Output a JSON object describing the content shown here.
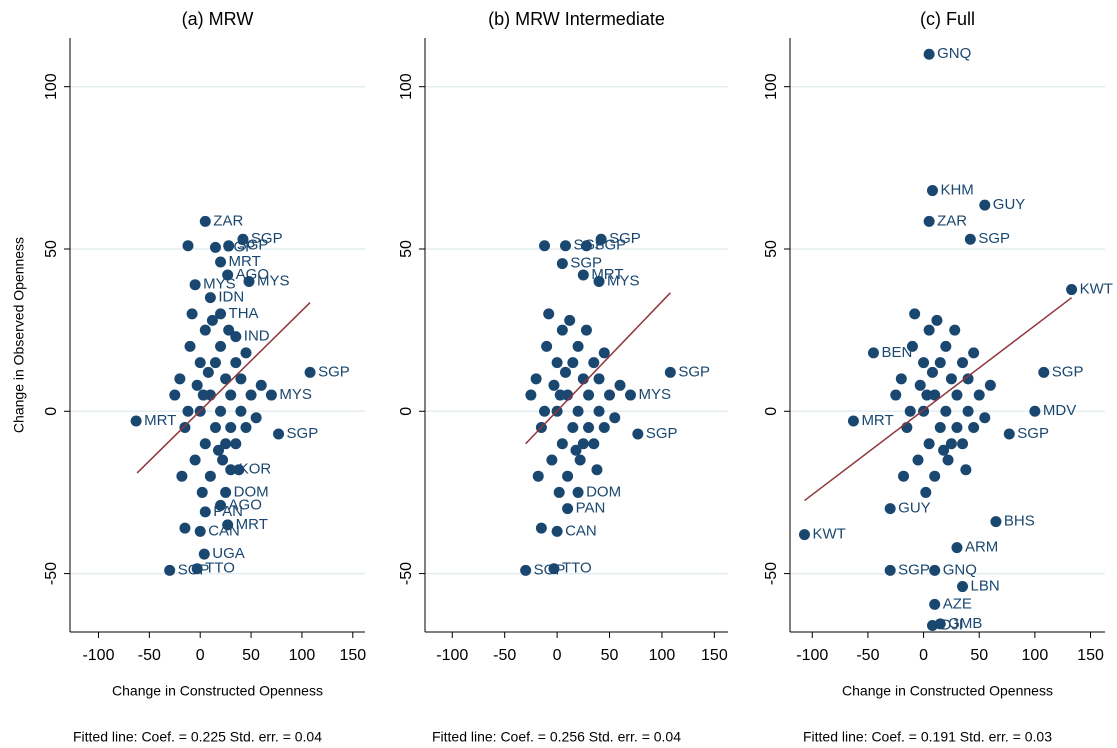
{
  "chart_data": [
    {
      "type": "scatter",
      "title": "(a) MRW",
      "xlabel": "Change in Constructed Openness",
      "ylabel": "Change in Observed Openness",
      "note": "Fitted line: Coef. = 0.225 Std. err. = 0.04",
      "x": [
        5,
        42,
        -12,
        28,
        15,
        20,
        27,
        48,
        -5,
        10,
        20,
        35,
        108,
        70,
        -63,
        77,
        30,
        25,
        20,
        5,
        -15,
        27,
        0,
        4,
        -30,
        -3,
        -20,
        -15,
        -10,
        -5,
        0,
        0,
        5,
        5,
        10,
        10,
        15,
        15,
        20,
        20,
        25,
        25,
        30,
        30,
        35,
        35,
        40,
        40,
        45,
        50,
        55,
        -25,
        -18,
        -8,
        2,
        12,
        22,
        45,
        60,
        -12,
        8,
        18,
        28,
        38,
        3,
        -3
      ],
      "y": [
        58.5,
        53,
        51,
        51,
        50.5,
        46,
        42,
        40,
        39,
        35,
        30,
        23,
        12,
        5,
        -3,
        -7,
        -18,
        -25,
        -29,
        -31,
        -36,
        -35,
        -37,
        -44,
        -49,
        -48.5,
        10,
        -5,
        20,
        -15,
        0,
        15,
        -10,
        25,
        5,
        -20,
        15,
        -5,
        0,
        20,
        -10,
        10,
        5,
        -5,
        15,
        -10,
        0,
        10,
        -5,
        5,
        -2,
        5,
        -20,
        30,
        -25,
        28,
        -15,
        18,
        8,
        0,
        12,
        -12,
        25,
        -18,
        5,
        8
      ],
      "labels": [
        "ZAR",
        "SGP",
        null,
        "SGP",
        "SGP",
        "MRT",
        "AGO",
        "MYS",
        "MYS",
        "IDN",
        "THA",
        "IND",
        "SGP",
        "MYS",
        "MRT",
        "SGP",
        "KOR",
        "DOM",
        "AGO",
        "PAN",
        null,
        "MRT",
        "CAN",
        "UGA",
        "SGP",
        "TTO",
        null,
        null,
        null,
        null,
        null,
        null,
        null,
        null,
        null,
        null,
        null,
        null,
        null,
        null,
        null,
        null,
        null,
        null,
        null,
        null,
        null,
        null,
        null,
        null,
        null,
        null,
        null,
        null,
        null,
        null,
        null,
        null,
        null,
        null,
        null,
        null,
        null,
        null,
        null,
        null
      ],
      "color": "#1a476f",
      "fit": {
        "x": [
          -62,
          108
        ],
        "y": [
          -19,
          33.5
        ],
        "color": "#90353b"
      },
      "xlim": [
        -128,
        162
      ],
      "ylim": [
        -68,
        115
      ],
      "xticks": [
        -100,
        -50,
        0,
        50,
        100,
        150
      ],
      "yticks": [
        -50,
        0,
        50,
        100
      ],
      "grid": true
    },
    {
      "type": "scatter",
      "title": "(b) MRW Intermediate",
      "note": "Fitted line: Coef. = 0.256 Std. err. = 0.04",
      "x": [
        42,
        -12,
        8,
        28,
        5,
        25,
        40,
        108,
        70,
        77,
        20,
        10,
        -15,
        0,
        -30,
        -3,
        -20,
        -15,
        -10,
        -5,
        0,
        0,
        5,
        5,
        10,
        10,
        15,
        15,
        20,
        20,
        25,
        25,
        30,
        30,
        35,
        35,
        40,
        40,
        45,
        50,
        55,
        -25,
        -18,
        -8,
        2,
        12,
        22,
        45,
        60,
        -12,
        8,
        18,
        28,
        38,
        3,
        -3
      ],
      "y": [
        53,
        51,
        51,
        51,
        45.5,
        42,
        40,
        12,
        5,
        -7,
        -25,
        -30,
        -36,
        -37,
        -49,
        -48.5,
        10,
        -5,
        20,
        -15,
        0,
        15,
        -10,
        25,
        5,
        -20,
        15,
        -5,
        0,
        20,
        -10,
        10,
        5,
        -5,
        15,
        -10,
        0,
        10,
        -5,
        5,
        -2,
        5,
        -20,
        30,
        -25,
        28,
        -15,
        18,
        8,
        0,
        12,
        -12,
        25,
        -18,
        5,
        8
      ],
      "labels": [
        "SGP",
        null,
        "SGP",
        "SGP",
        "SGP",
        "MRT",
        "MYS",
        "SGP",
        "MYS",
        "SGP",
        "DOM",
        "PAN",
        null,
        "CAN",
        "SGP",
        "TTO",
        null,
        null,
        null,
        null,
        null,
        null,
        null,
        null,
        null,
        null,
        null,
        null,
        null,
        null,
        null,
        null,
        null,
        null,
        null,
        null,
        null,
        null,
        null,
        null,
        null,
        null,
        null,
        null,
        null,
        null,
        null,
        null,
        null,
        null,
        null,
        null,
        null,
        null,
        null,
        null
      ],
      "color": "#1a476f",
      "fit": {
        "x": [
          -30,
          108
        ],
        "y": [
          -10,
          36.5
        ],
        "color": "#90353b"
      },
      "xlim": [
        -126,
        163
      ],
      "ylim": [
        -68,
        115
      ],
      "xticks": [
        -100,
        -50,
        0,
        50,
        100,
        150
      ],
      "yticks": [
        -50,
        0,
        50,
        100
      ],
      "grid": true
    },
    {
      "type": "scatter",
      "title": "(c) Full",
      "xlabel": "Change in Constructed Openness",
      "note": "Fitted line: Coef. = 0.191 Std. err. = 0.03",
      "x": [
        5,
        8,
        55,
        5,
        42,
        133,
        -45,
        108,
        -63,
        77,
        -107,
        65,
        -30,
        30,
        -30,
        10,
        35,
        10,
        15,
        8,
        100,
        -20,
        -15,
        -10,
        -5,
        0,
        0,
        5,
        5,
        10,
        10,
        15,
        15,
        20,
        20,
        25,
        25,
        30,
        30,
        35,
        35,
        40,
        40,
        45,
        50,
        55,
        -25,
        -18,
        -8,
        2,
        12,
        22,
        45,
        60,
        -12,
        8,
        18,
        28,
        38,
        3,
        -3
      ],
      "y": [
        110,
        68,
        63.5,
        58.5,
        53,
        37.5,
        18,
        12,
        -3,
        -7,
        -38,
        -34,
        -30,
        -42,
        -49,
        -49,
        -54,
        -59.5,
        -65.5,
        -66,
        0,
        10,
        -5,
        20,
        -15,
        0,
        15,
        -10,
        25,
        5,
        -20,
        15,
        -5,
        0,
        20,
        -10,
        10,
        5,
        -5,
        15,
        -10,
        0,
        10,
        -5,
        5,
        -2,
        5,
        -20,
        30,
        -25,
        28,
        -15,
        18,
        8,
        0,
        12,
        -12,
        25,
        -18,
        5,
        8
      ],
      "labels": [
        "GNQ",
        "KHM",
        "GUY",
        "ZAR",
        "SGP",
        "KWT",
        "BEN",
        "SGP",
        "MRT",
        "SGP",
        "KWT",
        "BHS",
        "GUY",
        "ARM",
        "SGP",
        "GNQ",
        "LBN",
        "AZE",
        "GMB",
        "DJI",
        "MDV",
        null,
        null,
        null,
        null,
        null,
        null,
        null,
        null,
        null,
        null,
        null,
        null,
        null,
        null,
        null,
        null,
        null,
        null,
        null,
        null,
        null,
        null,
        null,
        null,
        null,
        null,
        null,
        null,
        null,
        null,
        null,
        null,
        null,
        null,
        null,
        null,
        null,
        null,
        null,
        null
      ],
      "color": "#1a476f",
      "fit": {
        "x": [
          -107,
          133
        ],
        "y": [
          -27.5,
          35
        ],
        "color": "#90353b"
      },
      "xlim": [
        -120,
        163
      ],
      "ylim": [
        -68,
        115
      ],
      "xticks": [
        -100,
        -50,
        0,
        50,
        100,
        150
      ],
      "yticks": [
        -50,
        0,
        50,
        100
      ],
      "grid": true
    }
  ]
}
